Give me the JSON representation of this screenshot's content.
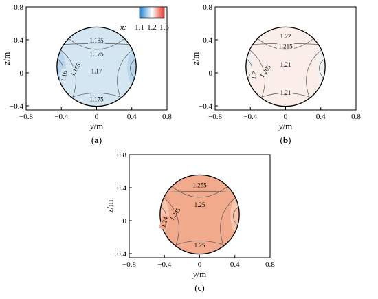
{
  "legend": {
    "symbol": "π:",
    "labels": [
      "1.1",
      "1.2",
      "1.3"
    ],
    "color_low": "#1f7fd0",
    "color_high": "#e8382a"
  },
  "chart_data": [
    {
      "type": "contour",
      "panel_label": "(a)",
      "xlabel_var": "y",
      "xlabel_unit": "/m",
      "ylabel_var": "z",
      "ylabel_unit": "/m",
      "xlim": [
        -0.8,
        0.8
      ],
      "ylim": [
        -0.45,
        0.8
      ],
      "xticks": [
        "−0.8",
        "−0.4",
        "0",
        "0.4",
        "0.8"
      ],
      "yticks": [
        "−0.4",
        "0",
        "0.4",
        "0.8"
      ],
      "circle": {
        "center": [
          0,
          0.075
        ],
        "radius": 0.45
      },
      "fill_color": "#d4e6f1",
      "side_color": "#b8d5ea",
      "contour_labels": [
        "1.185",
        "1.175",
        "1.17",
        "1.165",
        "1.16",
        "1.175"
      ]
    },
    {
      "type": "contour",
      "panel_label": "(b)",
      "xlabel_var": "y",
      "xlabel_unit": "/m",
      "ylabel_var": "z",
      "ylabel_unit": "/m",
      "xlim": [
        -0.8,
        0.8
      ],
      "ylim": [
        -0.45,
        0.8
      ],
      "xticks": [
        "−0.8",
        "−0.4",
        "0",
        "0.4",
        "0.8"
      ],
      "yticks": [
        "−0.4",
        "0",
        "0.4",
        "0.8"
      ],
      "circle": {
        "center": [
          0,
          0.075
        ],
        "radius": 0.45
      },
      "fill_color": "#fbeee8",
      "side_color": "#f3f0f0",
      "contour_labels": [
        "1.22",
        "1.215",
        "1.21",
        "1.205",
        "1.2",
        "1.21"
      ]
    },
    {
      "type": "contour",
      "panel_label": "(c)",
      "xlabel_var": "y",
      "xlabel_unit": "/m",
      "ylabel_var": "z",
      "ylabel_unit": "/m",
      "xlim": [
        -0.8,
        0.8
      ],
      "ylim": [
        -0.45,
        0.8
      ],
      "xticks": [
        "−0.8",
        "−0.4",
        "0",
        "0.4",
        "0.8"
      ],
      "yticks": [
        "−0.4",
        "0",
        "0.4",
        "0.8"
      ],
      "circle": {
        "center": [
          0,
          0.075
        ],
        "radius": 0.45
      },
      "fill_color": "#f2aa8d",
      "side_color": "#f7c4ad",
      "contour_labels": [
        "1.255",
        "1.25",
        "1.245",
        "1.24",
        "1.25"
      ]
    }
  ]
}
